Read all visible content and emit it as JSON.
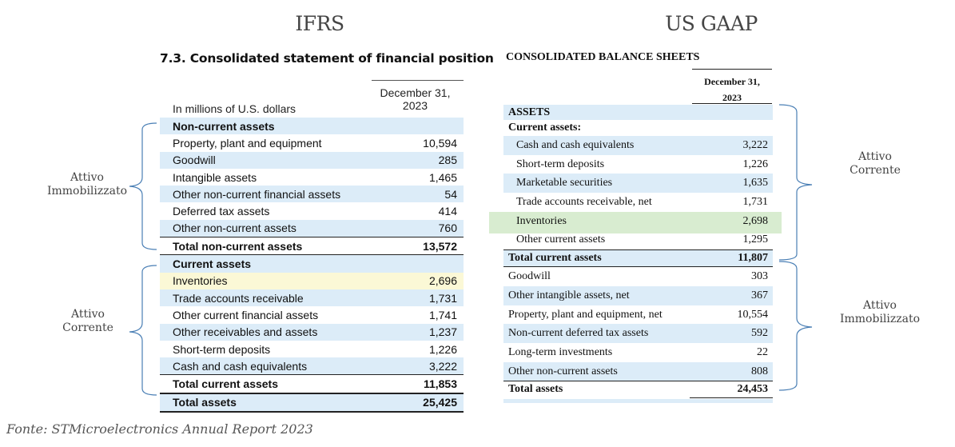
{
  "headings": {
    "ifrs": "IFRS",
    "us_gaap": "US GAAP"
  },
  "ifrs": {
    "title": "7.3. Consolidated statement of financial position",
    "units": "In millions of U.S. dollars",
    "date_line1": "December 31,",
    "date_line2": "2023",
    "rows": [
      {
        "label": "Non-current assets",
        "value": ""
      },
      {
        "label": "Property, plant and equipment",
        "value": "10,594"
      },
      {
        "label": "Goodwill",
        "value": "285"
      },
      {
        "label": "Intangible assets",
        "value": "1,465"
      },
      {
        "label": "Other non-current financial assets",
        "value": "54"
      },
      {
        "label": "Deferred tax assets",
        "value": "414"
      },
      {
        "label": "Other non-current assets",
        "value": "760"
      },
      {
        "label": "Total non-current assets",
        "value": "13,572"
      },
      {
        "label": "Current assets",
        "value": ""
      },
      {
        "label": "Inventories",
        "value": "2,696"
      },
      {
        "label": "Trade accounts receivable",
        "value": "1,731"
      },
      {
        "label": "Other current financial assets",
        "value": "1,741"
      },
      {
        "label": "Other receivables and assets",
        "value": "1,237"
      },
      {
        "label": "Short-term deposits",
        "value": "1,226"
      },
      {
        "label": "Cash and cash equivalents",
        "value": "3,222"
      },
      {
        "label": "Total current assets",
        "value": "11,853"
      },
      {
        "label": "Total assets",
        "value": "25,425"
      }
    ]
  },
  "us_gaap": {
    "title": "CONSOLIDATED BALANCE SHEETS",
    "date_line1": "December 31,",
    "date_line2": "2023",
    "rows": [
      {
        "label": "ASSETS",
        "value": ""
      },
      {
        "label": "Current assets:",
        "value": ""
      },
      {
        "label": "Cash and cash equivalents",
        "value": "3,222"
      },
      {
        "label": "Short-term deposits",
        "value": "1,226"
      },
      {
        "label": "Marketable securities",
        "value": "1,635"
      },
      {
        "label": "Trade accounts receivable, net",
        "value": "1,731"
      },
      {
        "label": "Inventories",
        "value": "2,698"
      },
      {
        "label": "Other current assets",
        "value": "1,295"
      },
      {
        "label": "Total current assets",
        "value": "11,807"
      },
      {
        "label": "Goodwill",
        "value": "303"
      },
      {
        "label": "Other intangible assets, net",
        "value": "367"
      },
      {
        "label": "Property, plant and equipment, net",
        "value": "10,554"
      },
      {
        "label": "Non-current deferred tax assets",
        "value": "592"
      },
      {
        "label": "Long-term investments",
        "value": "22"
      },
      {
        "label": "Other non-current assets",
        "value": "808"
      },
      {
        "label": "Total assets",
        "value": "24,453"
      }
    ]
  },
  "annotations": {
    "ifrs_noncurrent": [
      "Attivo",
      "Immobilizzato"
    ],
    "ifrs_current": [
      "Attivo",
      "Corrente"
    ],
    "gaap_current": [
      "Attivo",
      "Corrente"
    ],
    "gaap_noncurrent": [
      "Attivo",
      "Immobilizzato"
    ]
  },
  "source": "Fonte: STMicroelectronics Annual Report 2023",
  "colors": {
    "row_blue": "#dcecf8",
    "highlight_yellow": "#fbf8d6",
    "highlight_green": "#d8ecd0"
  }
}
